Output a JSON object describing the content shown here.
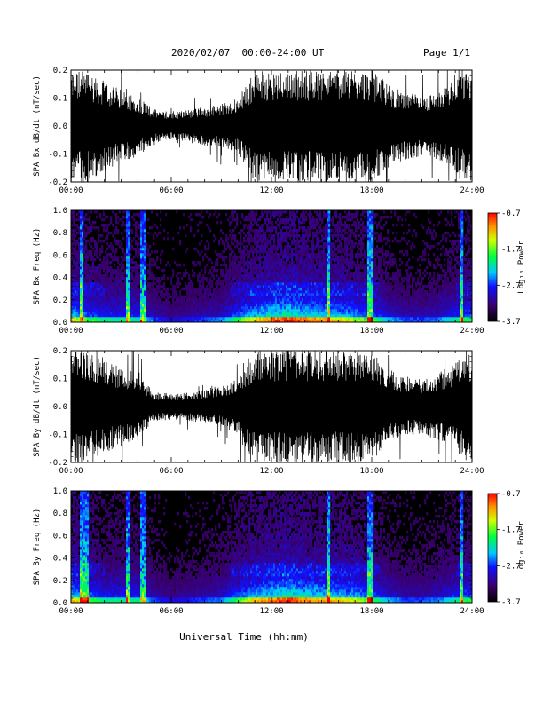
{
  "header": {
    "title": "2020/02/07  00:00-24:00 UT",
    "page": "Page 1/1"
  },
  "xlabel": "Universal Time (hh:mm)",
  "colorbar": {
    "label": "Log₁₀ Power",
    "ticks": [
      "-0.7",
      "-1.7",
      "-2.7",
      "-3.7"
    ],
    "range": [
      -3.7,
      -0.7
    ]
  },
  "chart_data": [
    {
      "type": "line",
      "ylabel": "SPA Bx dB/dt (nT/sec)",
      "xticks": [
        "00:00",
        "06:00",
        "12:00",
        "18:00",
        "24:00"
      ],
      "yticks": [
        "0.2",
        "0.1",
        "0.0",
        "-0.1",
        "-0.2"
      ],
      "xlim": [
        0,
        24
      ],
      "ylim": [
        -0.2,
        0.2
      ],
      "series": [
        {
          "x": [
            0,
            1,
            2,
            3,
            4,
            5,
            6,
            7,
            8,
            9,
            10,
            11,
            12,
            13,
            14,
            15,
            16,
            17,
            18,
            19,
            20,
            21,
            22,
            23,
            24
          ],
          "amplitude": [
            0.2,
            0.2,
            0.16,
            0.13,
            0.11,
            0.06,
            0.05,
            0.06,
            0.07,
            0.08,
            0.1,
            0.2,
            0.2,
            0.2,
            0.2,
            0.2,
            0.2,
            0.2,
            0.2,
            0.15,
            0.12,
            0.11,
            0.12,
            0.17,
            0.2
          ]
        }
      ]
    },
    {
      "type": "heatmap",
      "ylabel": "SPA Bx Freq (Hz)",
      "xticks": [
        "00:00",
        "06:00",
        "12:00",
        "18:00",
        "24:00"
      ],
      "yticks": [
        "1.0",
        "0.8",
        "0.6",
        "0.4",
        "0.2",
        "0.0"
      ],
      "xlim": [
        0,
        24
      ],
      "ylim": [
        0,
        1
      ],
      "activity_by_hour": [
        0.8,
        0.6,
        0.5,
        0.5,
        0.5,
        0.3,
        0.2,
        0.25,
        0.3,
        0.35,
        0.6,
        0.8,
        0.9,
        1.0,
        0.9,
        0.85,
        0.8,
        0.7,
        0.6,
        0.4,
        0.3,
        0.3,
        0.35,
        0.5,
        0.6
      ],
      "spikes_hours": [
        0.6,
        3.4,
        4.3,
        15.4,
        17.9,
        23.4
      ]
    },
    {
      "type": "line",
      "ylabel": "SPA By dB/dt (nT/sec)",
      "xticks": [
        "00:00",
        "06:00",
        "12:00",
        "18:00",
        "24:00"
      ],
      "yticks": [
        "0.2",
        "0.1",
        "0.0",
        "-0.1",
        "-0.2"
      ],
      "xlim": [
        0,
        24
      ],
      "ylim": [
        -0.2,
        0.2
      ],
      "series": [
        {
          "x": [
            0,
            1,
            2,
            3,
            4,
            5,
            6,
            7,
            8,
            9,
            10,
            11,
            12,
            13,
            14,
            15,
            16,
            17,
            18,
            19,
            20,
            21,
            22,
            23,
            24
          ],
          "amplitude": [
            0.2,
            0.2,
            0.17,
            0.14,
            0.12,
            0.05,
            0.05,
            0.05,
            0.06,
            0.07,
            0.1,
            0.2,
            0.2,
            0.2,
            0.2,
            0.2,
            0.2,
            0.2,
            0.2,
            0.14,
            0.1,
            0.1,
            0.12,
            0.16,
            0.2
          ]
        }
      ]
    },
    {
      "type": "heatmap",
      "ylabel": "SPA By Freq (Hz)",
      "xticks": [
        "00:00",
        "06:00",
        "12:00",
        "18:00",
        "24:00"
      ],
      "yticks": [
        "1.0",
        "0.8",
        "0.6",
        "0.4",
        "0.2",
        "0.0"
      ],
      "xlim": [
        0,
        24
      ],
      "ylim": [
        0,
        1
      ],
      "activity_by_hour": [
        0.85,
        0.65,
        0.5,
        0.5,
        0.5,
        0.3,
        0.2,
        0.25,
        0.3,
        0.35,
        0.6,
        0.8,
        0.9,
        1.0,
        0.9,
        0.85,
        0.8,
        0.75,
        0.6,
        0.4,
        0.3,
        0.3,
        0.35,
        0.5,
        0.6
      ],
      "spikes_hours": [
        0.6,
        0.9,
        3.4,
        4.3,
        15.4,
        17.9,
        23.4
      ]
    }
  ]
}
